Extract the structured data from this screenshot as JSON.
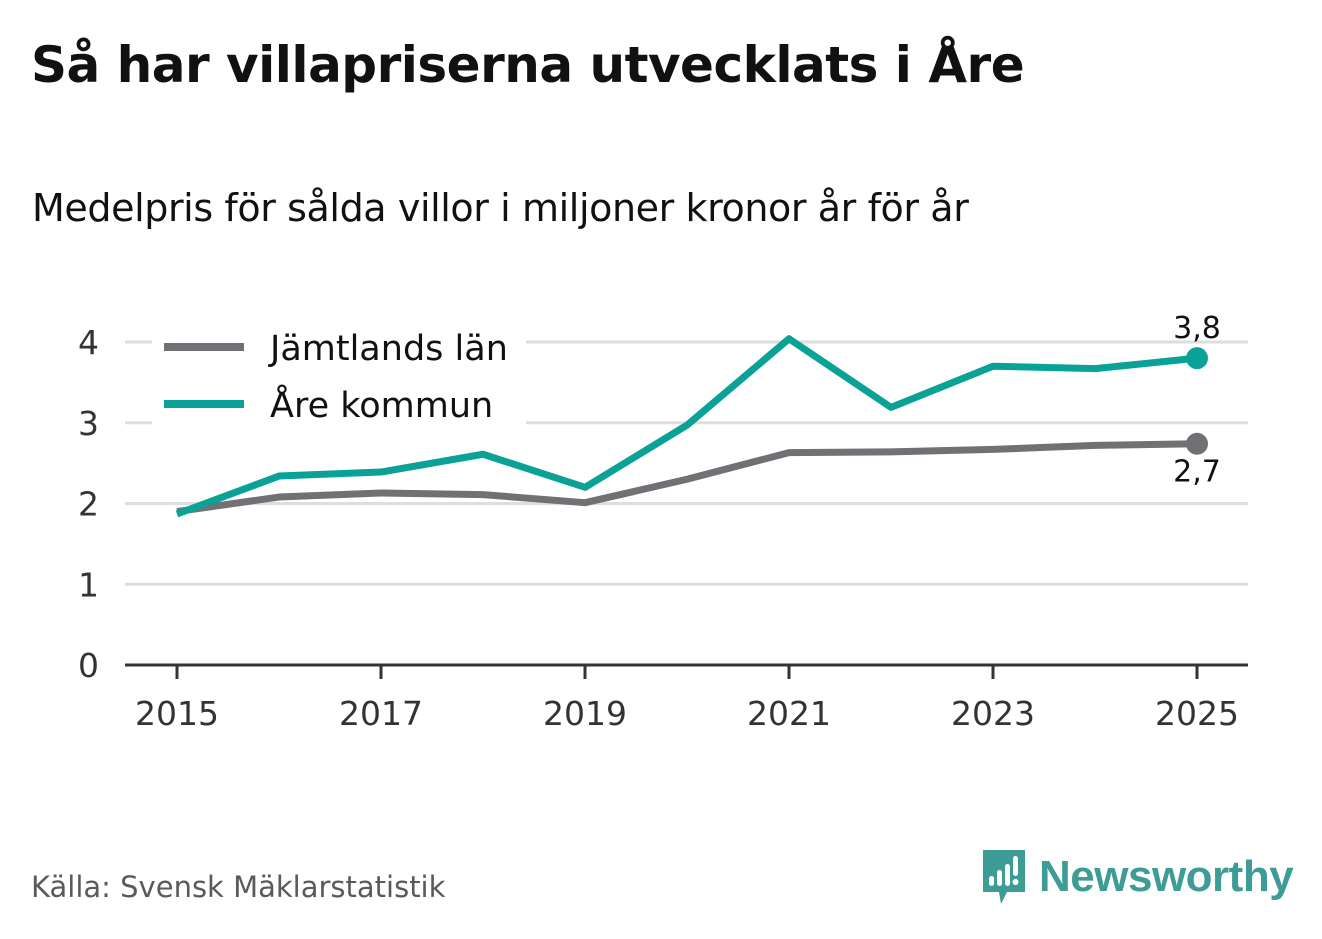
{
  "header": {
    "title": "Så har villapriserna utvecklats i Åre",
    "subtitle": "Medelpris för sålda villor i miljoner kronor år för år"
  },
  "footer": {
    "source": "Källa: Svensk Mäklarstatistik",
    "brand": "Newsworthy",
    "brand_icon": "bar-chart-speech-bubble-icon",
    "brand_color": "#3d9c95"
  },
  "chart_data": {
    "type": "line",
    "title": "Så har villapriserna utvecklats i Åre",
    "subtitle": "Medelpris för sålda villor i miljoner kronor år för år",
    "xlabel": "",
    "ylabel": "",
    "x": [
      2015,
      2016,
      2017,
      2018,
      2019,
      2020,
      2021,
      2022,
      2023,
      2024,
      2025
    ],
    "x_ticks": [
      "2015",
      "2017",
      "2019",
      "2021",
      "2023",
      "2025"
    ],
    "y_ticks": [
      "0",
      "1",
      "2",
      "3",
      "4"
    ],
    "ylim": [
      0,
      4
    ],
    "grid": true,
    "legend_position": "top-left",
    "series": [
      {
        "name": "Jämtlands län",
        "color": "#717075",
        "values": [
          1.9,
          2.08,
          2.13,
          2.11,
          2.01,
          2.3,
          2.63,
          2.64,
          2.67,
          2.72,
          2.74
        ],
        "end_label": "2,7"
      },
      {
        "name": "Åre kommun",
        "color": "#0aa296",
        "values": [
          1.87,
          2.34,
          2.39,
          2.61,
          2.2,
          2.97,
          4.04,
          3.19,
          3.7,
          3.67,
          3.8
        ],
        "end_label": "3,8"
      }
    ]
  }
}
